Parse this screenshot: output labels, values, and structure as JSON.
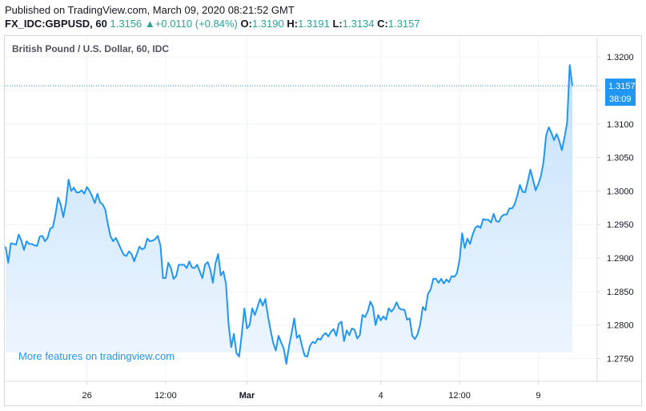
{
  "header": {
    "published": "Published on TradingView.com, March 09, 2020 08:21:52 GMT",
    "symbol": "FX_IDC:GBPUSD, 60",
    "last": "1.3156",
    "change_arrow": "▲",
    "change": "+0.0110 (+0.84%)",
    "o_label": "O:",
    "o_value": "1.3190",
    "h_label": "H:",
    "h_value": "1.3191",
    "l_label": "L:",
    "l_value": "1.3134",
    "c_label": "C:",
    "c_value": "1.3157"
  },
  "colors": {
    "line": "#2196f3",
    "area_top": "#c4e1fb",
    "area_bottom": "#eef6fe",
    "up": "#26a69a",
    "price_label_bg": "#2196f3"
  },
  "watermark": "More features on tradingview.com",
  "chart_data": {
    "type": "area",
    "title": "British Pound / U.S. Dollar, 60, IDC",
    "x_tick_labels": [
      "26",
      "12:00",
      "Mar",
      "4",
      "12:00",
      "9"
    ],
    "y_tick_labels": [
      "1.2750",
      "1.2800",
      "1.2850",
      "1.2900",
      "1.2950",
      "1.3000",
      "1.3050",
      "1.3100",
      "1.3150",
      "1.3200"
    ],
    "ylim": [
      1.2716,
      1.323
    ],
    "current_price": "1.3157",
    "countdown": "38:09",
    "grid": true,
    "series": [
      {
        "values": [
          1.2917,
          1.2893,
          1.2922,
          1.2921,
          1.292,
          1.2935,
          1.2926,
          1.2912,
          1.2925,
          1.2921,
          1.2921,
          1.2919,
          1.2918,
          1.2932,
          1.2933,
          1.2925,
          1.293,
          1.2944,
          1.2946,
          1.2965,
          1.299,
          1.298,
          1.2961,
          1.2982,
          1.3017,
          1.3,
          1.3005,
          1.2998,
          1.2998,
          1.3001,
          1.2996,
          1.3006,
          1.3,
          1.2992,
          1.2982,
          1.2996,
          1.2983,
          1.298,
          1.2972,
          1.295,
          1.2932,
          1.2925,
          1.293,
          1.2922,
          1.2913,
          1.2905,
          1.2903,
          1.291,
          1.2906,
          1.2895,
          1.2906,
          1.2917,
          1.2913,
          1.2915,
          1.2929,
          1.2925,
          1.2926,
          1.2928,
          1.2933,
          1.2919,
          1.287,
          1.287,
          1.2893,
          1.2885,
          1.2869,
          1.2873,
          1.289,
          1.289,
          1.289,
          1.2885,
          1.2895,
          1.2886,
          1.2885,
          1.289,
          1.288,
          1.287,
          1.289,
          1.2894,
          1.2883,
          1.2863,
          1.2892,
          1.2906,
          1.2874,
          1.288,
          1.2861,
          1.28,
          1.2767,
          1.2787,
          1.2758,
          1.2753,
          1.2786,
          1.2825,
          1.2795,
          1.28,
          1.2825,
          1.2815,
          1.2827,
          1.2839,
          1.2829,
          1.2839,
          1.2813,
          1.2792,
          1.2773,
          1.2762,
          1.2784,
          1.2774,
          1.2765,
          1.2742,
          1.2768,
          1.2788,
          1.281,
          1.2781,
          1.2785,
          1.2768,
          1.2754,
          1.2753,
          1.2769,
          1.2775,
          1.2773,
          1.278,
          1.2778,
          1.2785,
          1.2788,
          1.2783,
          1.279,
          1.2794,
          1.2784,
          1.2802,
          1.2805,
          1.2776,
          1.2792,
          1.2785,
          1.2795,
          1.2793,
          1.278,
          1.2785,
          1.2815,
          1.2812,
          1.282,
          1.2835,
          1.2827,
          1.28,
          1.2815,
          1.2807,
          1.2813,
          1.2808,
          1.2825,
          1.282,
          1.2825,
          1.2834,
          1.2825,
          1.2823,
          1.2823,
          1.2808,
          1.281,
          1.2784,
          1.2779,
          1.2786,
          1.2801,
          1.2827,
          1.2822,
          1.2847,
          1.2853,
          1.2869,
          1.2869,
          1.2863,
          1.2869,
          1.2862,
          1.2868,
          1.2864,
          1.2873,
          1.2872,
          1.2877,
          1.2897,
          1.2937,
          1.2915,
          1.2929,
          1.2921,
          1.2935,
          1.2945,
          1.2948,
          1.2945,
          1.2958,
          1.2957,
          1.2957,
          1.2953,
          1.2966,
          1.2955,
          1.2954,
          1.2962,
          1.2965,
          1.2965,
          1.2974,
          1.2974,
          1.298,
          1.2993,
          1.3009,
          1.2999,
          1.2998,
          1.3014,
          1.3032,
          1.3017,
          1.3001,
          1.301,
          1.3022,
          1.3043,
          1.3083,
          1.3095,
          1.3087,
          1.3076,
          1.3085,
          1.3075,
          1.3061,
          1.308,
          1.3102,
          1.3188,
          1.3157
        ]
      }
    ]
  }
}
